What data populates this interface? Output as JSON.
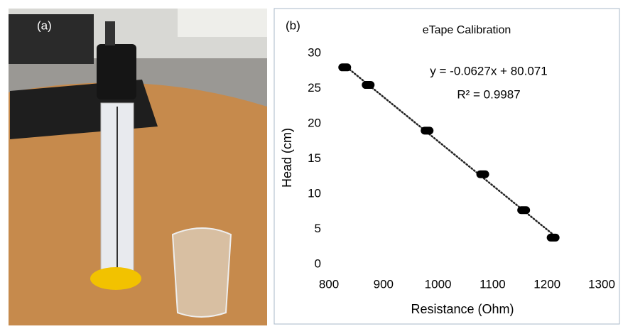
{
  "photo": {
    "label": "(a)"
  },
  "chart_data": {
    "type": "scatter",
    "panel_label": "(b)",
    "title": "eTape Calibration",
    "x_label": "Resistance (Ohm)",
    "y_label": "Head (cm)",
    "x": [
      829,
      872,
      980,
      1082,
      1157,
      1211
    ],
    "values": [
      28,
      25.5,
      19,
      12.8,
      7.7,
      3.8
    ],
    "color": "#000000",
    "trendline": true,
    "annotations": [
      "y = -0.0627x + 80.071",
      "R² = 0.9987"
    ],
    "xlim": [
      800,
      1300
    ],
    "xticks": [
      800,
      900,
      1000,
      1100,
      1200,
      1300
    ],
    "ylim": [
      0,
      30
    ],
    "yticks": [
      0,
      5,
      10,
      15,
      20,
      25,
      30
    ]
  }
}
